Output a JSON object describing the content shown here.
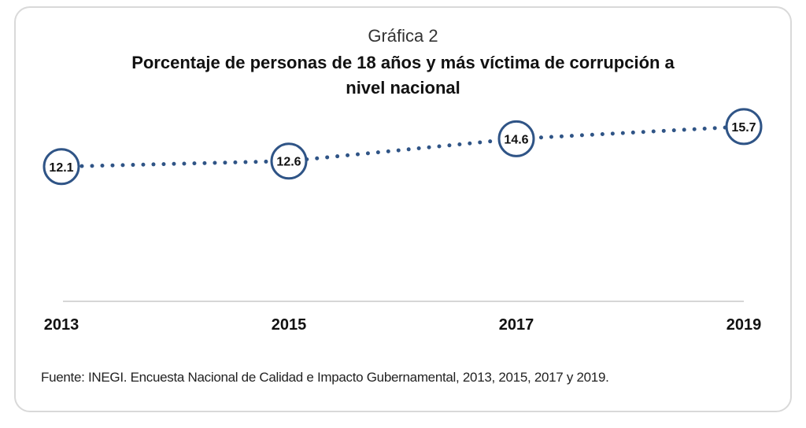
{
  "chart_data": {
    "type": "line",
    "subtitle": "Gráfica 2",
    "title": "Porcentaje de personas de 18 años y más víctima de corrupción a nivel nacional",
    "categories": [
      "2013",
      "2015",
      "2017",
      "2019"
    ],
    "values": [
      12.1,
      12.6,
      14.6,
      15.7
    ],
    "data_labels": [
      "12.1",
      "12.6",
      "14.6",
      "15.7"
    ],
    "line_style": "dotted",
    "marker": "circle",
    "series_color": "#2f5486",
    "axis_color": "#c8c8c8",
    "xlabel": "",
    "ylabel": "",
    "ylim": [
      0,
      20
    ],
    "grid": false,
    "legend": "none",
    "source": "Fuente: INEGI.  Encuesta Nacional de Calidad e Impacto Gubernamental, 2013, 2015, 2017 y 2019."
  }
}
